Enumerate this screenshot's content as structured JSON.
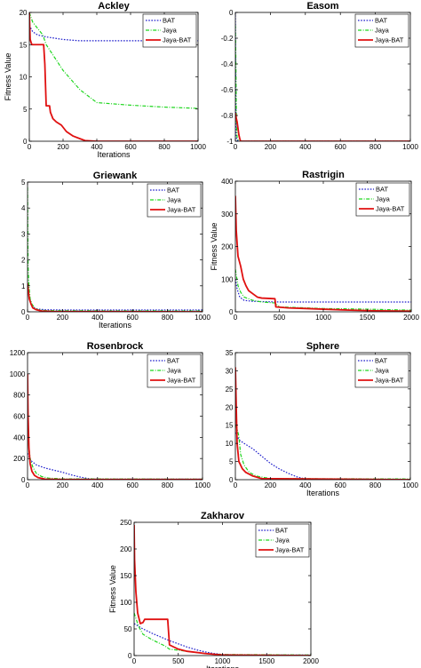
{
  "colors": {
    "BAT": "#1f1fcc",
    "Jaya": "#1fd61f",
    "Jaya-BAT": "#e01010",
    "axis": "#000000"
  },
  "chart_data": [
    {
      "type": "line",
      "title": "Ackley",
      "xlabel": "Iterations",
      "ylabel": "Fitness Value",
      "xlim": [
        0,
        1000
      ],
      "ylim": [
        0,
        20
      ],
      "xticks": [
        0,
        200,
        400,
        600,
        800,
        1000
      ],
      "yticks": [
        0,
        5,
        10,
        15,
        20
      ],
      "legend": "top-right",
      "series": [
        {
          "name": "BAT",
          "x": [
            0,
            20,
            50,
            100,
            150,
            200,
            300,
            1000
          ],
          "y": [
            18,
            17,
            16.5,
            16.2,
            16,
            15.8,
            15.6,
            15.6
          ]
        },
        {
          "name": "Jaya",
          "x": [
            0,
            20,
            50,
            80,
            100,
            150,
            200,
            250,
            300,
            350,
            400,
            500,
            600,
            800,
            1000
          ],
          "y": [
            20,
            18.5,
            17.5,
            16.5,
            15,
            13,
            11,
            9.5,
            8,
            7,
            6,
            5.8,
            5.6,
            5.3,
            5.1
          ]
        },
        {
          "name": "Jaya-BAT",
          "x": [
            0,
            5,
            15,
            30,
            85,
            92,
            100,
            120,
            125,
            140,
            160,
            190,
            220,
            260,
            300,
            330,
            400,
            1000
          ],
          "y": [
            20,
            15.8,
            15,
            15,
            15,
            12,
            5.5,
            5.5,
            4.5,
            3.5,
            3,
            2.5,
            1.5,
            0.8,
            0.4,
            0.1,
            0,
            0
          ]
        }
      ]
    },
    {
      "type": "line",
      "title": "Easom",
      "xlabel": "",
      "ylabel": "",
      "xlim": [
        0,
        1000
      ],
      "ylim": [
        -1,
        0
      ],
      "xticks": [
        0,
        200,
        400,
        600,
        800,
        1000
      ],
      "yticks": [
        -1,
        -0.8,
        -0.6,
        -0.4,
        -0.2,
        0
      ],
      "legend": "top-right",
      "series": [
        {
          "name": "BAT",
          "x": [
            0,
            2,
            4,
            8,
            20,
            1000
          ],
          "y": [
            0,
            -0.5,
            -0.95,
            -0.99,
            -1,
            -1
          ]
        },
        {
          "name": "Jaya",
          "x": [
            0,
            3,
            6,
            10,
            20,
            1000
          ],
          "y": [
            -0.1,
            -0.4,
            -0.85,
            -0.97,
            -1,
            -1
          ]
        },
        {
          "name": "Jaya-BAT",
          "x": [
            0,
            3,
            5,
            10,
            15,
            20,
            25,
            30,
            1000
          ],
          "y": [
            -0.78,
            -0.8,
            -0.82,
            -0.85,
            -0.9,
            -0.95,
            -0.98,
            -1,
            -1
          ]
        }
      ]
    },
    {
      "type": "line",
      "title": "Griewank",
      "xlabel": "Iterations",
      "ylabel": "",
      "xlim": [
        0,
        1000
      ],
      "ylim": [
        0,
        5
      ],
      "xticks": [
        0,
        200,
        400,
        600,
        800,
        1000
      ],
      "yticks": [
        0,
        1,
        2,
        3,
        4,
        5
      ],
      "legend": "top-right",
      "series": [
        {
          "name": "BAT",
          "x": [
            0,
            10,
            20,
            40,
            60,
            100,
            200,
            1000
          ],
          "y": [
            1.0,
            0.6,
            0.3,
            0.15,
            0.1,
            0.08,
            0.07,
            0.07
          ]
        },
        {
          "name": "Jaya",
          "x": [
            0,
            3,
            8,
            15,
            25,
            40,
            60,
            100,
            200,
            1000
          ],
          "y": [
            4.8,
            1.8,
            1.0,
            0.5,
            0.3,
            0.15,
            0.08,
            0.05,
            0.04,
            0.03
          ]
        },
        {
          "name": "Jaya-BAT",
          "x": [
            0,
            5,
            10,
            20,
            30,
            50,
            80,
            150,
            1000
          ],
          "y": [
            1.1,
            0.8,
            0.5,
            0.3,
            0.15,
            0.08,
            0.03,
            0.01,
            0
          ]
        }
      ]
    },
    {
      "type": "line",
      "title": "Rastrigin",
      "xlabel": "",
      "ylabel": "Fitness Value",
      "xlim": [
        0,
        2000
      ],
      "ylim": [
        0,
        400
      ],
      "xticks": [
        0,
        500,
        1000,
        1500,
        2000
      ],
      "yticks": [
        0,
        100,
        200,
        300,
        400
      ],
      "legend": "top-right",
      "series": [
        {
          "name": "BAT",
          "x": [
            0,
            20,
            50,
            100,
            200,
            500,
            1000,
            2000
          ],
          "y": [
            100,
            70,
            45,
            35,
            32,
            30,
            30,
            30
          ]
        },
        {
          "name": "Jaya",
          "x": [
            0,
            30,
            60,
            100,
            200,
            300,
            400,
            450,
            500,
            600,
            800,
            1000,
            1500,
            2000
          ],
          "y": [
            130,
            80,
            60,
            45,
            35,
            30,
            28,
            27,
            15,
            14,
            12,
            10,
            8,
            5
          ]
        },
        {
          "name": "Jaya-BAT",
          "x": [
            0,
            10,
            30,
            60,
            90,
            120,
            150,
            200,
            250,
            300,
            450,
            460,
            600,
            800,
            1000,
            1300,
            1600,
            2000
          ],
          "y": [
            355,
            250,
            170,
            140,
            100,
            80,
            65,
            55,
            45,
            42,
            40,
            15,
            12,
            10,
            8,
            5,
            3,
            2
          ]
        }
      ]
    },
    {
      "type": "line",
      "title": "Rosenbrock",
      "xlabel": "",
      "ylabel": "",
      "xlim": [
        0,
        1000
      ],
      "ylim": [
        0,
        1200
      ],
      "xticks": [
        0,
        200,
        400,
        600,
        800,
        1000
      ],
      "yticks": [
        0,
        200,
        400,
        600,
        800,
        1000,
        1200
      ],
      "legend": "top-right",
      "series": [
        {
          "name": "BAT",
          "x": [
            0,
            20,
            50,
            100,
            150,
            200,
            250,
            300,
            350,
            400,
            1000
          ],
          "y": [
            250,
            180,
            140,
            110,
            90,
            70,
            45,
            25,
            10,
            5,
            5
          ]
        },
        {
          "name": "Jaya",
          "x": [
            0,
            5,
            15,
            30,
            50,
            80,
            120,
            200,
            1000
          ],
          "y": [
            900,
            350,
            200,
            120,
            60,
            30,
            15,
            8,
            5
          ]
        },
        {
          "name": "Jaya-BAT",
          "x": [
            0,
            3,
            8,
            15,
            25,
            40,
            60,
            100,
            200,
            1000
          ],
          "y": [
            1000,
            600,
            300,
            150,
            80,
            40,
            20,
            5,
            2,
            2
          ]
        }
      ]
    },
    {
      "type": "line",
      "title": "Sphere",
      "xlabel": "Iterations",
      "ylabel": "",
      "xlim": [
        0,
        1000
      ],
      "ylim": [
        0,
        35
      ],
      "xticks": [
        0,
        200,
        400,
        600,
        800,
        1000
      ],
      "yticks": [
        0,
        5,
        10,
        15,
        20,
        25,
        30,
        35
      ],
      "legend": "top-right",
      "series": [
        {
          "name": "BAT",
          "x": [
            0,
            20,
            50,
            100,
            150,
            200,
            250,
            300,
            350,
            400,
            1000
          ],
          "y": [
            13,
            11,
            10,
            8.5,
            6.5,
            4.5,
            3,
            1.8,
            0.8,
            0.2,
            0.1
          ]
        },
        {
          "name": "Jaya",
          "x": [
            0,
            10,
            20,
            30,
            50,
            80,
            120,
            200,
            1000
          ],
          "y": [
            15,
            14,
            12,
            7,
            4,
            2,
            1,
            0.3,
            0.2
          ]
        },
        {
          "name": "Jaya-BAT",
          "x": [
            0,
            5,
            10,
            20,
            40,
            60,
            100,
            150,
            1000
          ],
          "y": [
            31,
            20,
            10,
            5,
            3,
            2,
            1,
            0.3,
            0
          ]
        }
      ]
    },
    {
      "type": "line",
      "title": "Zakharov",
      "xlabel": "Iterations",
      "ylabel": "Fitness Value",
      "xlim": [
        0,
        2000
      ],
      "ylim": [
        0,
        250
      ],
      "xticks": [
        0,
        500,
        1000,
        1500,
        2000
      ],
      "yticks": [
        0,
        50,
        100,
        150,
        200,
        250
      ],
      "legend": "top-right",
      "series": [
        {
          "name": "BAT",
          "x": [
            0,
            100,
            200,
            300,
            400,
            500,
            600,
            700,
            800,
            900,
            1000,
            1200,
            2000
          ],
          "y": [
            60,
            50,
            42,
            35,
            28,
            22,
            16,
            11,
            7,
            4,
            2,
            1,
            1
          ]
        },
        {
          "name": "Jaya",
          "x": [
            0,
            50,
            100,
            200,
            300,
            350,
            400,
            600,
            800,
            1000,
            2000
          ],
          "y": [
            80,
            55,
            40,
            30,
            22,
            18,
            12,
            8,
            4,
            2,
            1
          ]
        },
        {
          "name": "Jaya-BAT",
          "x": [
            0,
            5,
            20,
            40,
            70,
            100,
            120,
            380,
            400,
            500,
            600,
            800,
            1000,
            2000
          ],
          "y": [
            245,
            180,
            120,
            80,
            60,
            62,
            68,
            68,
            20,
            12,
            8,
            4,
            1,
            0
          ]
        }
      ]
    }
  ]
}
